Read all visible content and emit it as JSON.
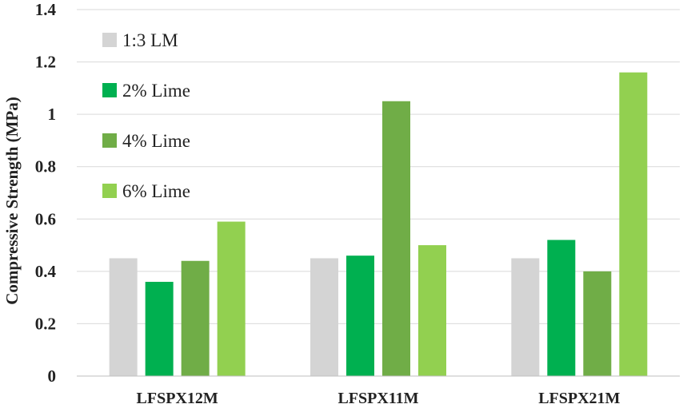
{
  "chart_data": {
    "type": "bar",
    "title": "",
    "xlabel": "",
    "ylabel": "Compressive Strength (MPa)",
    "ylim": [
      0,
      1.4
    ],
    "yticks": [
      0,
      0.2,
      0.4,
      0.6,
      0.8,
      1,
      1.2,
      1.4
    ],
    "ytick_labels": [
      "0",
      "0.2",
      "0.4",
      "0.6",
      "0.8",
      "1",
      "1.2",
      "1.4"
    ],
    "grid": true,
    "legend_position": "top-left",
    "categories": [
      "LFSPX12M",
      "LFSPX11M",
      "LFSPX21M"
    ],
    "series": [
      {
        "name": "1:3 LM",
        "color": "#d4d4d4",
        "values": [
          0.45,
          0.45,
          0.45
        ]
      },
      {
        "name": "2% Lime",
        "color": "#00b050",
        "values": [
          0.36,
          0.46,
          0.52
        ]
      },
      {
        "name": "4% Lime",
        "color": "#70ad47",
        "values": [
          0.44,
          1.05,
          0.4
        ]
      },
      {
        "name": "6% Lime",
        "color": "#92d050",
        "values": [
          0.59,
          0.5,
          1.16
        ]
      }
    ]
  }
}
